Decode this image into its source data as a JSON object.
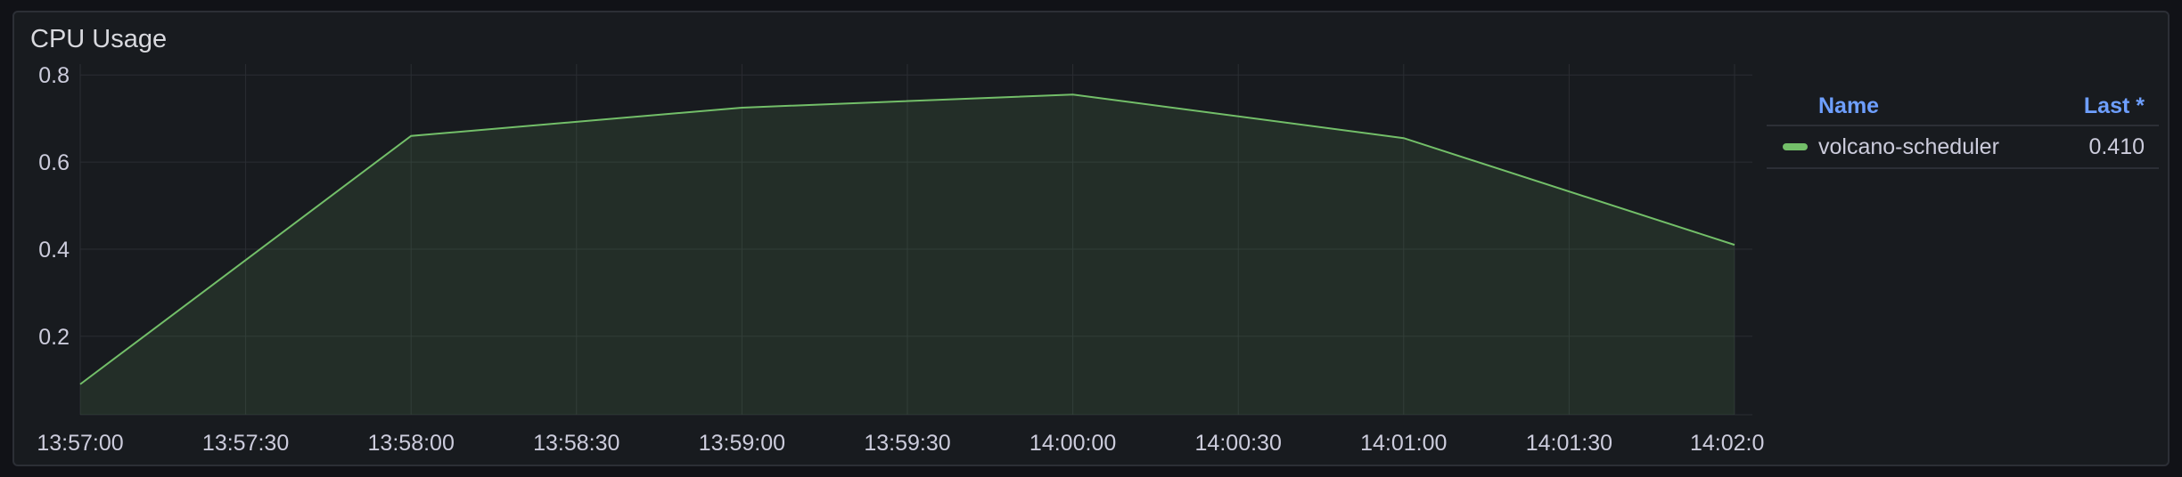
{
  "panel": {
    "title": "CPU Usage"
  },
  "legend": {
    "name_header": "Name",
    "last_header": "Last *",
    "items": [
      {
        "name": "volcano-scheduler",
        "last": "0.410",
        "color": "#73bf69"
      }
    ]
  },
  "chart_data": {
    "type": "area",
    "x_tick_labels": [
      "13:57:00",
      "13:57:30",
      "13:58:00",
      "13:58:30",
      "13:59:00",
      "13:59:30",
      "14:00:00",
      "14:00:30",
      "14:01:00",
      "14:01:30",
      "14:02:0"
    ],
    "y_tick_labels": [
      "0.8",
      "0.6",
      "0.4",
      "0.2"
    ],
    "y_ticks": [
      0.8,
      0.6,
      0.4,
      0.2
    ],
    "ylim": [
      0.02,
      0.825
    ],
    "grid": true,
    "legend_position": "right",
    "series": [
      {
        "name": "volcano-scheduler",
        "color": "#73bf69",
        "x": [
          "13:57:00",
          "13:58:00",
          "13:59:00",
          "14:00:00",
          "14:01:00",
          "14:02:00"
        ],
        "values": [
          0.09,
          0.66,
          0.725,
          0.755,
          0.655,
          0.41
        ]
      }
    ]
  }
}
